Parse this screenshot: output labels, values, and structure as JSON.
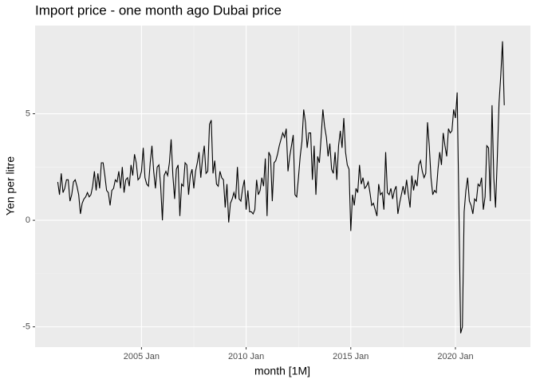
{
  "chart_data": {
    "type": "line",
    "title": "Import price - one month ago Dubai price",
    "x_label": "month [1M]",
    "y_label": "Yen per litre",
    "x": [
      "2001 Jan",
      "2001 Feb",
      "2001 Mar",
      "2001 Apr",
      "2001 May",
      "2001 Jun",
      "2001 Jul",
      "2001 Aug",
      "2001 Sep",
      "2001 Oct",
      "2001 Nov",
      "2001 Dec",
      "2002 Jan",
      "2002 Feb",
      "2002 Mar",
      "2002 Apr",
      "2002 May",
      "2002 Jun",
      "2002 Jul",
      "2002 Aug",
      "2002 Sep",
      "2002 Oct",
      "2002 Nov",
      "2002 Dec",
      "2003 Jan",
      "2003 Feb",
      "2003 Mar",
      "2003 Apr",
      "2003 May",
      "2003 Jun",
      "2003 Jul",
      "2003 Aug",
      "2003 Sep",
      "2003 Oct",
      "2003 Nov",
      "2003 Dec",
      "2004 Jan",
      "2004 Feb",
      "2004 Mar",
      "2004 Apr",
      "2004 May",
      "2004 Jun",
      "2004 Jul",
      "2004 Aug",
      "2004 Sep",
      "2004 Oct",
      "2004 Nov",
      "2004 Dec",
      "2005 Jan",
      "2005 Feb",
      "2005 Mar",
      "2005 Apr",
      "2005 May",
      "2005 Jun",
      "2005 Jul",
      "2005 Aug",
      "2005 Sep",
      "2005 Oct",
      "2005 Nov",
      "2005 Dec",
      "2006 Jan",
      "2006 Feb",
      "2006 Mar",
      "2006 Apr",
      "2006 May",
      "2006 Jun",
      "2006 Jul",
      "2006 Aug",
      "2006 Sep",
      "2006 Oct",
      "2006 Nov",
      "2006 Dec",
      "2007 Jan",
      "2007 Feb",
      "2007 Mar",
      "2007 Apr",
      "2007 May",
      "2007 Jun",
      "2007 Jul",
      "2007 Aug",
      "2007 Sep",
      "2007 Oct",
      "2007 Nov",
      "2007 Dec",
      "2008 Jan",
      "2008 Feb",
      "2008 Mar",
      "2008 Apr",
      "2008 May",
      "2008 Jun",
      "2008 Jul",
      "2008 Aug",
      "2008 Sep",
      "2008 Oct",
      "2008 Nov",
      "2008 Dec",
      "2009 Jan",
      "2009 Feb",
      "2009 Mar",
      "2009 Apr",
      "2009 May",
      "2009 Jun",
      "2009 Jul",
      "2009 Aug",
      "2009 Sep",
      "2009 Oct",
      "2009 Nov",
      "2009 Dec",
      "2010 Jan",
      "2010 Feb",
      "2010 Mar",
      "2010 Apr",
      "2010 May",
      "2010 Jun",
      "2010 Jul",
      "2010 Aug",
      "2010 Sep",
      "2010 Oct",
      "2010 Nov",
      "2010 Dec",
      "2011 Jan",
      "2011 Feb",
      "2011 Mar",
      "2011 Apr",
      "2011 May",
      "2011 Jun",
      "2011 Jul",
      "2011 Aug",
      "2011 Sep",
      "2011 Oct",
      "2011 Nov",
      "2011 Dec",
      "2012 Jan",
      "2012 Feb",
      "2012 Mar",
      "2012 Apr",
      "2012 May",
      "2012 Jun",
      "2012 Jul",
      "2012 Aug",
      "2012 Sep",
      "2012 Oct",
      "2012 Nov",
      "2012 Dec",
      "2013 Jan",
      "2013 Feb",
      "2013 Mar",
      "2013 Apr",
      "2013 May",
      "2013 Jun",
      "2013 Jul",
      "2013 Aug",
      "2013 Sep",
      "2013 Oct",
      "2013 Nov",
      "2013 Dec",
      "2014 Jan",
      "2014 Feb",
      "2014 Mar",
      "2014 Apr",
      "2014 May",
      "2014 Jun",
      "2014 Jul",
      "2014 Aug",
      "2014 Sep",
      "2014 Oct",
      "2014 Nov",
      "2014 Dec",
      "2015 Jan",
      "2015 Feb",
      "2015 Mar",
      "2015 Apr",
      "2015 May",
      "2015 Jun",
      "2015 Jul",
      "2015 Aug",
      "2015 Sep",
      "2015 Oct",
      "2015 Nov",
      "2015 Dec",
      "2016 Jan",
      "2016 Feb",
      "2016 Mar",
      "2016 Apr",
      "2016 May",
      "2016 Jun",
      "2016 Jul",
      "2016 Aug",
      "2016 Sep",
      "2016 Oct",
      "2016 Nov",
      "2016 Dec",
      "2017 Jan",
      "2017 Feb",
      "2017 Mar",
      "2017 Apr",
      "2017 May",
      "2017 Jun",
      "2017 Jul",
      "2017 Aug",
      "2017 Sep",
      "2017 Oct",
      "2017 Nov",
      "2017 Dec",
      "2018 Jan",
      "2018 Feb",
      "2018 Mar",
      "2018 Apr",
      "2018 May",
      "2018 Jun",
      "2018 Jul",
      "2018 Aug",
      "2018 Sep",
      "2018 Oct",
      "2018 Nov",
      "2018 Dec",
      "2019 Jan",
      "2019 Feb",
      "2019 Mar",
      "2019 Apr",
      "2019 May",
      "2019 Jun",
      "2019 Jul",
      "2019 Aug",
      "2019 Sep",
      "2019 Oct",
      "2019 Nov",
      "2019 Dec",
      "2020 Jan",
      "2020 Feb",
      "2020 Mar",
      "2020 Apr",
      "2020 May",
      "2020 Jun",
      "2020 Jul",
      "2020 Aug",
      "2020 Sep",
      "2020 Oct",
      "2020 Nov",
      "2020 Dec",
      "2021 Jan",
      "2021 Feb",
      "2021 Mar",
      "2021 Apr",
      "2021 May",
      "2021 Jun",
      "2021 Jul",
      "2021 Aug",
      "2021 Sep",
      "2021 Oct",
      "2021 Nov",
      "2021 Dec",
      "2022 Jan",
      "2022 Feb",
      "2022 Mar",
      "2022 Apr",
      "2022 May"
    ],
    "values": [
      1.8,
      1.2,
      2.2,
      1.3,
      1.5,
      1.9,
      1.9,
      0.9,
      1.2,
      1.8,
      1.9,
      1.6,
      1.2,
      0.3,
      0.8,
      1.0,
      1.1,
      1.3,
      1.1,
      1.2,
      1.6,
      2.3,
      1.4,
      2.2,
      1.5,
      2.7,
      2.7,
      2.1,
      1.4,
      1.3,
      0.7,
      1.4,
      1.5,
      1.9,
      1.8,
      2.3,
      1.5,
      2.5,
      1.3,
      1.9,
      2.0,
      1.6,
      2.6,
      2.1,
      3.1,
      2.7,
      1.9,
      2.0,
      2.3,
      3.4,
      2.0,
      1.7,
      1.6,
      2.7,
      3.5,
      2.3,
      1.5,
      2.5,
      2.6,
      1.6,
      0.0,
      2.1,
      2.3,
      2.1,
      2.7,
      3.8,
      2.1,
      1.0,
      2.4,
      2.6,
      0.2,
      1.7,
      1.6,
      2.7,
      2.6,
      1.2,
      2.1,
      2.4,
      1.5,
      2.3,
      2.7,
      3.2,
      2.0,
      2.9,
      3.5,
      2.2,
      2.3,
      4.5,
      4.7,
      2.2,
      2.8,
      1.7,
      1.6,
      2.3,
      2.0,
      1.9,
      0.6,
      1.7,
      -0.1,
      0.8,
      1.0,
      1.3,
      1.0,
      2.5,
      1.0,
      0.9,
      1.5,
      1.9,
      0.5,
      1.4,
      0.4,
      0.4,
      0.3,
      0.5,
      1.9,
      1.2,
      1.4,
      2.0,
      1.6,
      2.9,
      0.2,
      3.2,
      3.0,
      0.9,
      2.7,
      2.8,
      3.1,
      3.5,
      3.8,
      4.1,
      3.9,
      4.3,
      2.3,
      3.0,
      3.5,
      4.0,
      1.2,
      1.1,
      2.0,
      3.0,
      3.7,
      5.2,
      4.6,
      3.4,
      4.1,
      4.1,
      1.9,
      3.5,
      1.2,
      3.0,
      2.7,
      3.9,
      5.2,
      4.4,
      3.9,
      3.0,
      3.6,
      2.4,
      2.2,
      3.2,
      1.9,
      3.5,
      4.2,
      3.4,
      4.8,
      3.2,
      2.6,
      2.4,
      -0.5,
      1.2,
      0.7,
      1.5,
      1.3,
      2.6,
      1.7,
      2.0,
      1.5,
      1.6,
      1.8,
      1.3,
      0.7,
      0.8,
      0.5,
      0.2,
      1.7,
      1.2,
      1.3,
      0.5,
      3.2,
      1.3,
      1.2,
      1.5,
      1.0,
      1.4,
      1.6,
      0.3,
      0.8,
      1.2,
      1.6,
      1.2,
      1.9,
      1.2,
      0.6,
      2.1,
      1.4,
      1.9,
      1.6,
      2.6,
      2.8,
      2.3,
      2.0,
      2.2,
      4.6,
      3.5,
      2.0,
      1.2,
      1.4,
      1.3,
      2.4,
      3.2,
      2.6,
      4.1,
      3.5,
      3.0,
      4.3,
      4.1,
      4.2,
      5.2,
      4.8,
      6.0,
      0.6,
      -5.3,
      -5.0,
      0.4,
      1.4,
      2.0,
      0.9,
      0.7,
      0.3,
      1.0,
      0.9,
      1.7,
      1.6,
      2.0,
      0.5,
      1.1,
      3.5,
      3.4,
      0.9,
      5.4,
      2.0,
      0.6,
      2.9,
      5.5,
      6.8,
      8.4,
      5.4
    ],
    "color": "#000000",
    "xlim": [
      "1999 Dec",
      "2023 Aug"
    ],
    "xticks": [
      "2005 Jan",
      "2010 Jan",
      "2015 Jan",
      "2020 Jan"
    ],
    "ylim": [
      -5.95,
      9.14
    ],
    "yticks": [
      -5,
      0,
      5
    ],
    "grid": true
  }
}
